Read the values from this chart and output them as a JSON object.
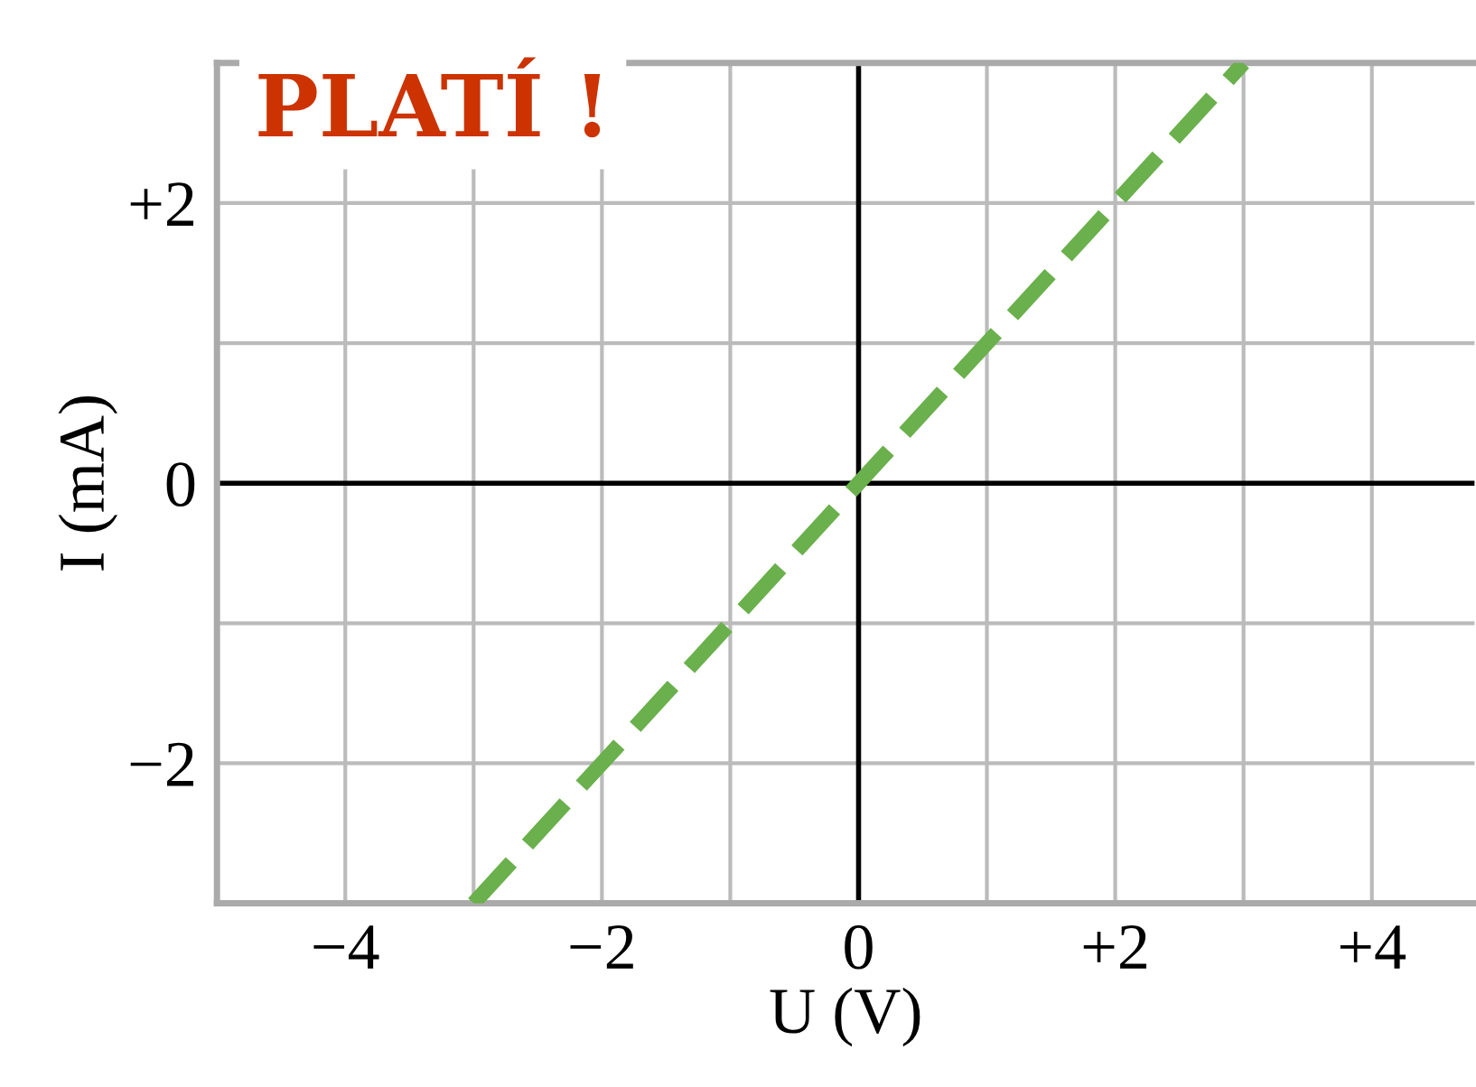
{
  "chart_data": {
    "type": "line",
    "title": "PLATÍ !",
    "xlabel": "U (V)",
    "ylabel": "I (mA)",
    "x": [
      -3.0,
      3.0
    ],
    "series": [
      {
        "color": "#6ab04c",
        "values": [
          -3.0,
          3.0
        ]
      }
    ],
    "line_style": "dashed",
    "marker": "none",
    "grid": true,
    "xlim": [
      -5,
      4.8
    ],
    "ylim": [
      -3,
      3
    ],
    "xticks": [
      -4,
      {
        "value": -3,
        "label": null
      },
      -2,
      {
        "value": -1,
        "label": null
      },
      0,
      {
        "value": 1,
        "label": null
      },
      {
        "value": 2,
        "label": "+2"
      },
      {
        "value": 3,
        "label": null
      },
      {
        "value": 4,
        "label": "+4"
      }
    ],
    "yticks": [
      -2,
      {
        "value": -1,
        "label": null
      },
      0,
      {
        "value": 1,
        "label": null
      },
      {
        "value": 2,
        "label": "+2"
      }
    ]
  }
}
